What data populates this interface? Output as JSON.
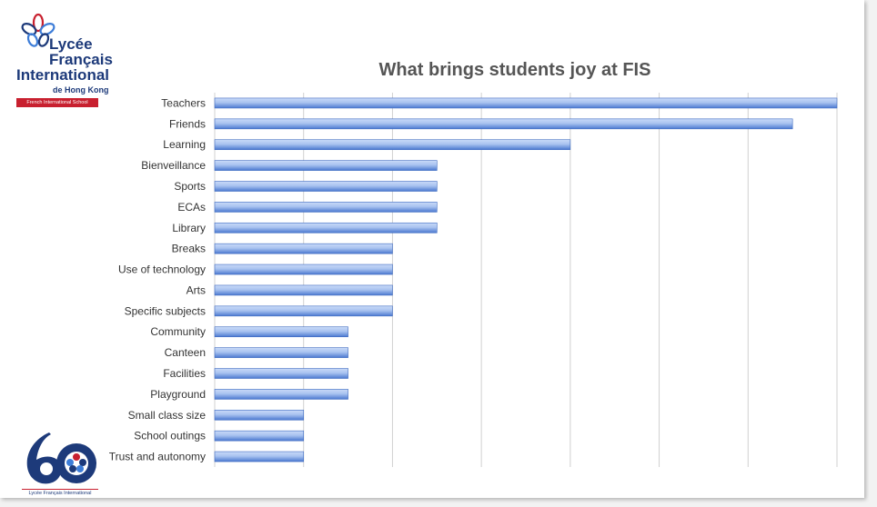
{
  "logo_top": {
    "line1": "Lycée",
    "line2": "Français",
    "line3": "International",
    "line4": "de Hong Kong",
    "line5": "French International School"
  },
  "logo_bottom": {
    "number": "60",
    "caption": "Lycée Français International"
  },
  "colors": {
    "bar_light": "#c9daf8",
    "bar_dark": "#4a78d0",
    "grid": "#d0d0d0",
    "brand_blue": "#1d3a7a",
    "brand_red": "#c8202f"
  },
  "chart_data": {
    "type": "bar",
    "orientation": "horizontal",
    "title": "What brings students joy at FIS",
    "categories": [
      "Teachers",
      "Friends",
      "Learning",
      "Bienveillance",
      "Sports",
      "ECAs",
      "Library",
      "Breaks",
      "Use of technology",
      "Arts",
      "Specific subjects",
      "Community",
      "Canteen",
      "Facilities",
      "Playground",
      "Small class size",
      "School outings",
      "Trust and autonomy"
    ],
    "values": [
      14,
      13,
      8,
      5,
      5,
      5,
      5,
      4,
      4,
      4,
      4,
      3,
      3,
      3,
      3,
      2,
      2,
      2
    ],
    "xlim": [
      0,
      14
    ],
    "grid": true,
    "legend": "none"
  }
}
